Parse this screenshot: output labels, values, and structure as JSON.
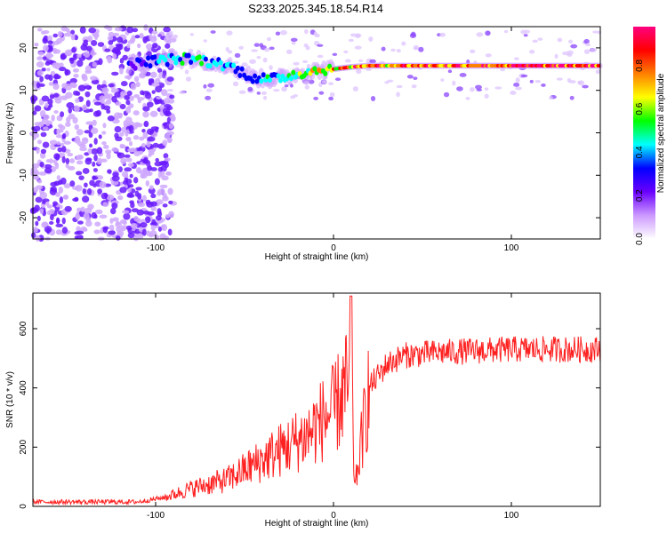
{
  "title": "S233.2025.345.18.54.R14",
  "chart_data": [
    {
      "type": "heatmap",
      "xlabel": "Height of straight line (km)",
      "ylabel": "Frequency (Hz)",
      "xlim": [
        -169,
        150
      ],
      "ylim": [
        -25,
        25
      ],
      "x_ticks": [
        -100,
        0,
        100
      ],
      "y_ticks": [
        20,
        10,
        0,
        -10,
        -20
      ],
      "colorbar": {
        "label": "Normalized spectral amplitude",
        "range": [
          0,
          0.98
        ],
        "ticks": [
          0.0,
          0.2,
          0.4,
          0.6,
          0.8
        ],
        "colors": [
          "#ffffff",
          "#cc99ff",
          "#6a00ff",
          "#0000ff",
          "#00ffff",
          "#00ff00",
          "#ffff00",
          "#ff8000",
          "#ff0000",
          "#ff0080"
        ]
      },
      "ridge": {
        "description_points_x": [
          -115,
          -100,
          -80,
          -60,
          -45,
          -35,
          -20,
          -5,
          0,
          10,
          20,
          50,
          100,
          150
        ],
        "frequency_hz": [
          16,
          17,
          17.5,
          16,
          13,
          12.5,
          14,
          15,
          15,
          15.5,
          15.8,
          15.8,
          15.8,
          15.8
        ],
        "amplitude": [
          0.3,
          0.4,
          0.45,
          0.4,
          0.35,
          0.45,
          0.55,
          0.7,
          0.75,
          0.8,
          0.8,
          0.85,
          0.9,
          0.9
        ]
      },
      "noise_region_x": [
        -169,
        -100
      ]
    },
    {
      "type": "line",
      "xlabel": "Height of straight line (km)",
      "ylabel": "SNR (10 * v/v)",
      "xlim": [
        -169,
        150
      ],
      "ylim": [
        0,
        720
      ],
      "x_ticks": [
        -100,
        0,
        100
      ],
      "y_ticks": [
        0,
        200,
        400,
        600
      ],
      "color": "#ff2020",
      "series": [
        {
          "x": [
            -169,
            -110,
            -95,
            -80,
            -60,
            -45,
            -30,
            -15,
            -5,
            0,
            5,
            10,
            12,
            20,
            30,
            40,
            60,
            80,
            100,
            120,
            150
          ],
          "values": [
            15,
            15,
            30,
            60,
            90,
            140,
            190,
            240,
            300,
            320,
            380,
            420,
            60,
            400,
            480,
            510,
            520,
            525,
            530,
            530,
            530
          ]
        }
      ]
    }
  ]
}
